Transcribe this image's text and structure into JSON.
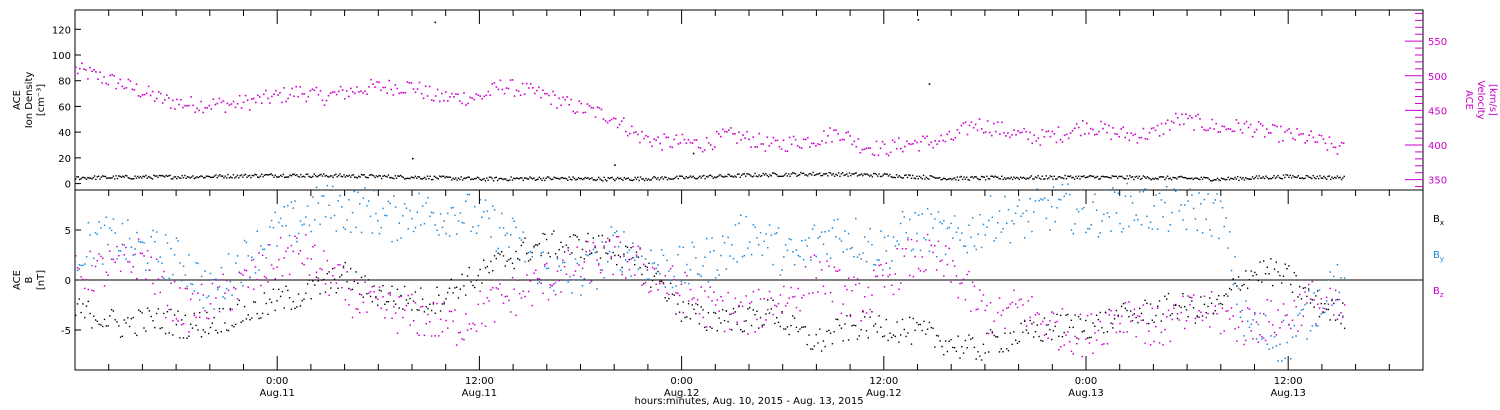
{
  "chart_data": [
    {
      "type": "scatter",
      "panel": "density-velocity",
      "left_axis": {
        "label_lines": [
          "ACE",
          "Ion Density",
          "[cm⁻³]"
        ],
        "ylim": [
          -5,
          135
        ],
        "ticks": [
          0,
          20,
          40,
          60,
          80,
          100,
          120
        ],
        "color": "#000000"
      },
      "right_axis": {
        "label_lines": [
          "ACE",
          "Velocity",
          "[km/s]"
        ],
        "ylim": [
          335,
          595
        ],
        "ticks": [
          350,
          400,
          450,
          500,
          550
        ],
        "color": "#cc00cc"
      },
      "series": [
        {
          "axis": "left",
          "color": "#000000",
          "points": [
            [
              0,
              5
            ],
            [
              6,
              5.5
            ],
            [
              12,
              6
            ],
            [
              18,
              7
            ],
            [
              24,
              6.5
            ],
            [
              30,
              5.5
            ],
            [
              36,
              4
            ],
            [
              42,
              4.5
            ],
            [
              48,
              4
            ],
            [
              54,
              5
            ],
            [
              60,
              7
            ],
            [
              66,
              8
            ],
            [
              72,
              7
            ],
            [
              78,
              4.5
            ],
            [
              84,
              5
            ],
            [
              90,
              5.5
            ],
            [
              96,
              5
            ],
            [
              102,
              4
            ],
            [
              108,
              6
            ],
            [
              113,
              5
            ]
          ],
          "outliers": [
            [
              48,
              15
            ],
            [
              55,
              24
            ],
            [
              30,
              20
            ],
            [
              32,
              126
            ],
            [
              75,
              128
            ],
            [
              76,
              78
            ]
          ]
        },
        {
          "axis": "right",
          "color": "#cc00cc",
          "points": [
            [
              0,
              510
            ],
            [
              4,
              490
            ],
            [
              8,
              465
            ],
            [
              10,
              460
            ],
            [
              14,
              460
            ],
            [
              16,
              465
            ],
            [
              20,
              478
            ],
            [
              22,
              470
            ],
            [
              26,
              484
            ],
            [
              30,
              486
            ],
            [
              32,
              470
            ],
            [
              36,
              470
            ],
            [
              38,
              487
            ],
            [
              42,
              472
            ],
            [
              44,
              458
            ],
            [
              46,
              450
            ],
            [
              48,
              440
            ],
            [
              50,
              415
            ],
            [
              52,
              405
            ],
            [
              54,
              405
            ],
            [
              56,
              402
            ],
            [
              58,
              415
            ],
            [
              60,
              410
            ],
            [
              62,
              400
            ],
            [
              64,
              405
            ],
            [
              66,
              410
            ],
            [
              68,
              420
            ],
            [
              70,
              400
            ],
            [
              72,
              395
            ],
            [
              74,
              403
            ],
            [
              76,
              405
            ],
            [
              78,
              410
            ],
            [
              80,
              432
            ],
            [
              82,
              425
            ],
            [
              84,
              415
            ],
            [
              86,
              412
            ],
            [
              88,
              418
            ],
            [
              90,
              430
            ],
            [
              92,
              420
            ],
            [
              94,
              415
            ],
            [
              96,
              418
            ],
            [
              98,
              438
            ],
            [
              100,
              433
            ],
            [
              102,
              425
            ],
            [
              104,
              428
            ],
            [
              106,
              420
            ],
            [
              108,
              415
            ],
            [
              110,
              410
            ],
            [
              113,
              393
            ]
          ]
        }
      ]
    },
    {
      "type": "scatter",
      "panel": "magnetic-field",
      "left_axis": {
        "label_lines": [
          "ACE",
          "B",
          "[nT]"
        ],
        "ylim": [
          -9,
          9
        ],
        "ticks": [
          -5,
          0,
          5
        ],
        "color": "#000000"
      },
      "legend": [
        "Bx",
        "By",
        "Bz"
      ],
      "legend_placement": "right",
      "series": [
        {
          "name": "Bx",
          "color": "#000000",
          "points": [
            [
              0,
              -3
            ],
            [
              2,
              -3.5
            ],
            [
              4,
              -4.5
            ],
            [
              6,
              -4
            ],
            [
              8,
              -4
            ],
            [
              10,
              -4.5
            ],
            [
              12,
              -4.2
            ],
            [
              14,
              -3.5
            ],
            [
              16,
              -3
            ],
            [
              18,
              -2
            ],
            [
              20,
              -1.5
            ],
            [
              24,
              0.5
            ],
            [
              26,
              -1
            ],
            [
              28,
              -1.5
            ],
            [
              30,
              -2
            ],
            [
              32,
              -2
            ],
            [
              34,
              -0.5
            ],
            [
              36,
              0.5
            ],
            [
              38,
              2
            ],
            [
              40,
              3
            ],
            [
              42,
              3.6
            ],
            [
              44,
              3.5
            ],
            [
              46,
              3.5
            ],
            [
              48,
              3
            ],
            [
              50,
              1.5
            ],
            [
              52,
              0
            ],
            [
              54,
              -3
            ],
            [
              56,
              -4
            ],
            [
              58,
              -3.5
            ],
            [
              60,
              -4
            ],
            [
              62,
              -3
            ],
            [
              64,
              -5
            ],
            [
              66,
              -6.2
            ],
            [
              68,
              -5
            ],
            [
              70,
              -4.5
            ],
            [
              72,
              -4.5
            ],
            [
              74,
              -5
            ],
            [
              76,
              -5.5
            ],
            [
              78,
              -6.3
            ],
            [
              80,
              -7
            ],
            [
              82,
              -6
            ],
            [
              84,
              -5.5
            ],
            [
              86,
              -5
            ],
            [
              88,
              -4.5
            ],
            [
              90,
              -4.5
            ],
            [
              92,
              -4
            ],
            [
              94,
              -3.5
            ],
            [
              96,
              -3
            ],
            [
              98,
              -2.5
            ],
            [
              100,
              -3
            ],
            [
              102,
              -2.5
            ],
            [
              104,
              0.5
            ],
            [
              106,
              1
            ],
            [
              108,
              0.2
            ],
            [
              110,
              -2
            ],
            [
              112,
              -3
            ],
            [
              113,
              -3.5
            ]
          ]
        },
        {
          "name": "By",
          "color": "#1e88d8",
          "points": [
            [
              0,
              3
            ],
            [
              2,
              4
            ],
            [
              4,
              4
            ],
            [
              6,
              3
            ],
            [
              8,
              2.5
            ],
            [
              10,
              1.5
            ],
            [
              12,
              -1.5
            ],
            [
              14,
              1
            ],
            [
              16,
              3
            ],
            [
              18,
              5
            ],
            [
              20,
              6
            ],
            [
              22,
              7.5
            ],
            [
              24,
              7
            ],
            [
              26,
              7.2
            ],
            [
              28,
              6
            ],
            [
              30,
              7
            ],
            [
              32,
              6.5
            ],
            [
              34,
              7
            ],
            [
              36,
              6
            ],
            [
              38,
              5
            ],
            [
              40,
              3
            ],
            [
              42,
              1
            ],
            [
              44,
              0
            ],
            [
              46,
              1
            ],
            [
              48,
              3.5
            ],
            [
              50,
              2.5
            ],
            [
              52,
              1.5
            ],
            [
              54,
              1
            ],
            [
              56,
              2
            ],
            [
              58,
              3
            ],
            [
              60,
              5
            ],
            [
              62,
              3.5
            ],
            [
              64,
              2
            ],
            [
              66,
              4
            ],
            [
              68,
              5
            ],
            [
              70,
              4
            ],
            [
              72,
              3
            ],
            [
              74,
              5
            ],
            [
              76,
              5
            ],
            [
              78,
              4
            ],
            [
              80,
              5
            ],
            [
              82,
              6.5
            ],
            [
              84,
              6
            ],
            [
              86,
              7
            ],
            [
              88,
              7.5
            ],
            [
              90,
              6.5
            ],
            [
              92,
              7
            ],
            [
              94,
              7.5
            ],
            [
              96,
              7
            ],
            [
              98,
              7
            ],
            [
              100,
              7
            ],
            [
              102,
              6.5
            ],
            [
              104,
              -4
            ],
            [
              106,
              -5.5
            ],
            [
              108,
              -6
            ],
            [
              110,
              -3
            ],
            [
              112,
              0
            ],
            [
              113,
              -2
            ]
          ]
        },
        {
          "name": "Bz",
          "color": "#cc00cc",
          "points": [
            [
              0,
              0.5
            ],
            [
              2,
              1
            ],
            [
              4,
              1.5
            ],
            [
              6,
              2.5
            ],
            [
              8,
              -1.5
            ],
            [
              10,
              -3
            ],
            [
              12,
              -2
            ],
            [
              14,
              -1
            ],
            [
              16,
              0.5
            ],
            [
              18,
              2
            ],
            [
              20,
              3
            ],
            [
              22,
              1
            ],
            [
              24,
              -1
            ],
            [
              26,
              -2.5
            ],
            [
              28,
              -3
            ],
            [
              30,
              -3.5
            ],
            [
              32,
              -4
            ],
            [
              34,
              -4.5
            ],
            [
              36,
              -3
            ],
            [
              38,
              -2
            ],
            [
              40,
              -1
            ],
            [
              42,
              0
            ],
            [
              44,
              1
            ],
            [
              46,
              2
            ],
            [
              48,
              2.5
            ],
            [
              50,
              1.5
            ],
            [
              52,
              0
            ],
            [
              54,
              -1
            ],
            [
              56,
              -2.5
            ],
            [
              58,
              -3
            ],
            [
              60,
              -3.5
            ],
            [
              62,
              -2
            ],
            [
              64,
              -1.5
            ],
            [
              66,
              1
            ],
            [
              68,
              -1
            ],
            [
              70,
              -2
            ],
            [
              72,
              0
            ],
            [
              74,
              2
            ],
            [
              76,
              2.5
            ],
            [
              78,
              1
            ],
            [
              80,
              -2
            ],
            [
              82,
              -4
            ],
            [
              84,
              -2.5
            ],
            [
              86,
              -4
            ],
            [
              88,
              -5
            ],
            [
              90,
              -5.5
            ],
            [
              92,
              -4
            ],
            [
              94,
              -3
            ],
            [
              96,
              -5
            ],
            [
              98,
              -4
            ],
            [
              100,
              -3
            ],
            [
              102,
              -3.5
            ],
            [
              104,
              -4.5
            ],
            [
              106,
              -4
            ],
            [
              108,
              -3.5
            ],
            [
              110,
              -2
            ],
            [
              112,
              -3
            ],
            [
              113,
              -3.5
            ]
          ]
        }
      ]
    },
    {
      "type": "time_axis",
      "xlim": [
        0,
        120
      ],
      "ticks": [
        {
          "x": 18,
          "label": "0:00",
          "sub": "Aug.11"
        },
        {
          "x": 36,
          "label": "12:00",
          "sub": "Aug.11"
        },
        {
          "x": 54,
          "label": "0:00",
          "sub": "Aug.12"
        },
        {
          "x": 72,
          "label": "12:00",
          "sub": "Aug.12"
        },
        {
          "x": 90,
          "label": "0:00",
          "sub": "Aug.13"
        },
        {
          "x": 108,
          "label": "12:00",
          "sub": "Aug.13"
        }
      ],
      "xlabel": "hours:minutes, Aug. 10, 2015 - Aug. 13, 2015"
    }
  ]
}
